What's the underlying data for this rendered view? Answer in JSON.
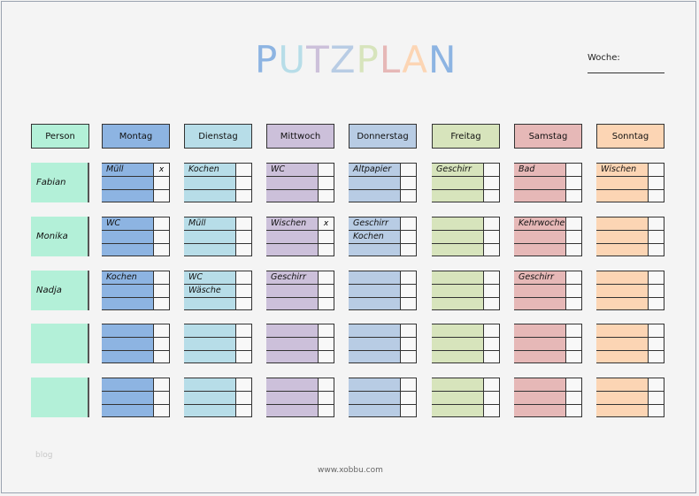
{
  "title": {
    "letters": [
      {
        "ch": "P",
        "color": "#8db4e2"
      },
      {
        "ch": "U",
        "color": "#b7dde8"
      },
      {
        "ch": "T",
        "color": "#ccc0da"
      },
      {
        "ch": "Z",
        "color": "#b8cce4"
      },
      {
        "ch": "P",
        "color": "#d7e4bc"
      },
      {
        "ch": "L",
        "color": "#e6b8b7"
      },
      {
        "ch": "A",
        "color": "#fcd5b4"
      },
      {
        "ch": "N",
        "color": "#8db4e2"
      }
    ]
  },
  "week_label": "Woche:",
  "person_header": "Person",
  "person_color": "#b3f0d8",
  "days": [
    {
      "name": "Montag",
      "color": "#8db4e2"
    },
    {
      "name": "Dienstag",
      "color": "#b7dde8"
    },
    {
      "name": "Mittwoch",
      "color": "#ccc0da"
    },
    {
      "name": "Donnerstag",
      "color": "#b8cce4"
    },
    {
      "name": "Freitag",
      "color": "#d7e4bc"
    },
    {
      "name": "Samstag",
      "color": "#e6b8b7"
    },
    {
      "name": "Sonntag",
      "color": "#fcd5b4"
    }
  ],
  "rows": [
    {
      "person": "Fabian",
      "tasks": [
        [
          [
            "Müll",
            "x"
          ],
          [
            "",
            ""
          ],
          [
            "",
            ""
          ]
        ],
        [
          [
            "Kochen",
            ""
          ],
          [
            "",
            ""
          ],
          [
            "",
            ""
          ]
        ],
        [
          [
            "WC",
            ""
          ],
          [
            "",
            ""
          ],
          [
            "",
            ""
          ]
        ],
        [
          [
            "Altpapier",
            ""
          ],
          [
            "",
            ""
          ],
          [
            "",
            ""
          ]
        ],
        [
          [
            "Geschirr",
            ""
          ],
          [
            "",
            ""
          ],
          [
            "",
            ""
          ]
        ],
        [
          [
            "Bad",
            ""
          ],
          [
            "",
            ""
          ],
          [
            "",
            ""
          ]
        ],
        [
          [
            "Wischen",
            ""
          ],
          [
            "",
            ""
          ],
          [
            "",
            ""
          ]
        ]
      ]
    },
    {
      "person": "Monika",
      "tasks": [
        [
          [
            "WC",
            ""
          ],
          [
            "",
            ""
          ],
          [
            "",
            ""
          ]
        ],
        [
          [
            "Müll",
            ""
          ],
          [
            "",
            ""
          ],
          [
            "",
            ""
          ]
        ],
        [
          [
            "Wischen",
            "x"
          ],
          [
            "",
            ""
          ],
          [
            "",
            ""
          ]
        ],
        [
          [
            "Geschirr",
            ""
          ],
          [
            "Kochen",
            ""
          ],
          [
            "",
            ""
          ]
        ],
        [
          [
            "",
            ""
          ],
          [
            "",
            ""
          ],
          [
            "",
            ""
          ]
        ],
        [
          [
            "Kehrwoche",
            ""
          ],
          [
            "",
            ""
          ],
          [
            "",
            ""
          ]
        ],
        [
          [
            "",
            ""
          ],
          [
            "",
            ""
          ],
          [
            "",
            ""
          ]
        ]
      ]
    },
    {
      "person": "Nadja",
      "tasks": [
        [
          [
            "Kochen",
            ""
          ],
          [
            "",
            ""
          ],
          [
            "",
            ""
          ]
        ],
        [
          [
            "WC",
            ""
          ],
          [
            "Wäsche",
            ""
          ],
          [
            "",
            ""
          ]
        ],
        [
          [
            "Geschirr",
            ""
          ],
          [
            "",
            ""
          ],
          [
            "",
            ""
          ]
        ],
        [
          [
            "",
            ""
          ],
          [
            "",
            ""
          ],
          [
            "",
            ""
          ]
        ],
        [
          [
            "",
            ""
          ],
          [
            "",
            ""
          ],
          [
            "",
            ""
          ]
        ],
        [
          [
            "Geschirr",
            ""
          ],
          [
            "",
            ""
          ],
          [
            "",
            ""
          ]
        ],
        [
          [
            "",
            ""
          ],
          [
            "",
            ""
          ],
          [
            "",
            ""
          ]
        ]
      ]
    },
    {
      "person": "",
      "tasks": []
    },
    {
      "person": "",
      "tasks": []
    }
  ],
  "watermark": "blog",
  "footer": "www.xobbu.com"
}
